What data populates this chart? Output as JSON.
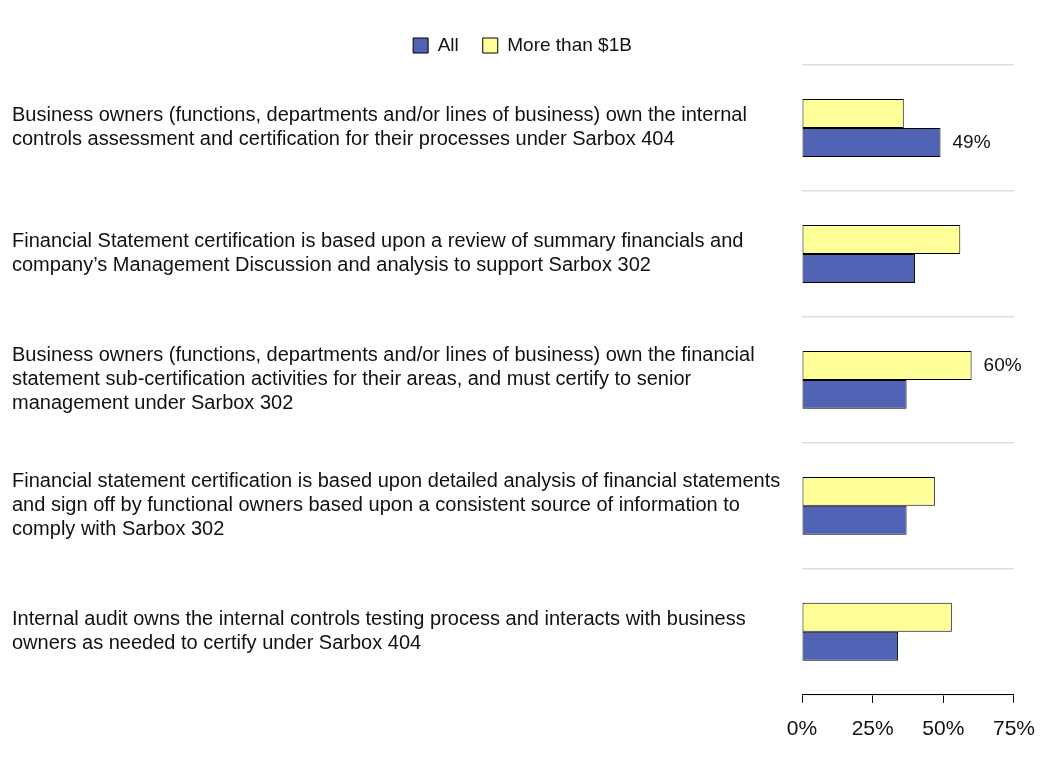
{
  "chart_data": {
    "type": "bar",
    "orientation": "horizontal",
    "legend": "top",
    "categories": [
      "Business owners (functions, departments and/or lines of business) own the internal controls assessment and certification for their processes under Sarbox 404",
      "Financial Statement certification is based upon a review of summary financials and company’s Management Discussion and analysis to support Sarbox 302",
      "Business owners (functions, departments and/or lines of business) own the financial statement sub-certification activities for their areas, and must certify to senior management under Sarbox 302",
      "Financial statement certification is based upon detailed analysis of financial statements and sign off by functional owners based upon a consistent source of information to comply with Sarbox 302",
      "Internal audit owns the internal controls testing process and interacts with business owners as needed to certify under Sarbox 404"
    ],
    "series": [
      {
        "name": "All",
        "color": "#4f62b4",
        "values": [
          49,
          40,
          37,
          37,
          34
        ],
        "value_labels": [
          "49%",
          null,
          null,
          null,
          null
        ]
      },
      {
        "name": "More than $1B",
        "color": "#ffff99",
        "values": [
          36,
          56,
          60,
          47,
          53
        ],
        "value_labels": [
          null,
          null,
          "60%",
          null,
          null
        ]
      }
    ],
    "xlim": [
      0,
      75
    ],
    "xticks": [
      {
        "value": 0,
        "label": "0%"
      },
      {
        "value": 25,
        "label": "25%"
      },
      {
        "value": 50,
        "label": "50%"
      },
      {
        "value": 75,
        "label": "75%"
      }
    ]
  }
}
